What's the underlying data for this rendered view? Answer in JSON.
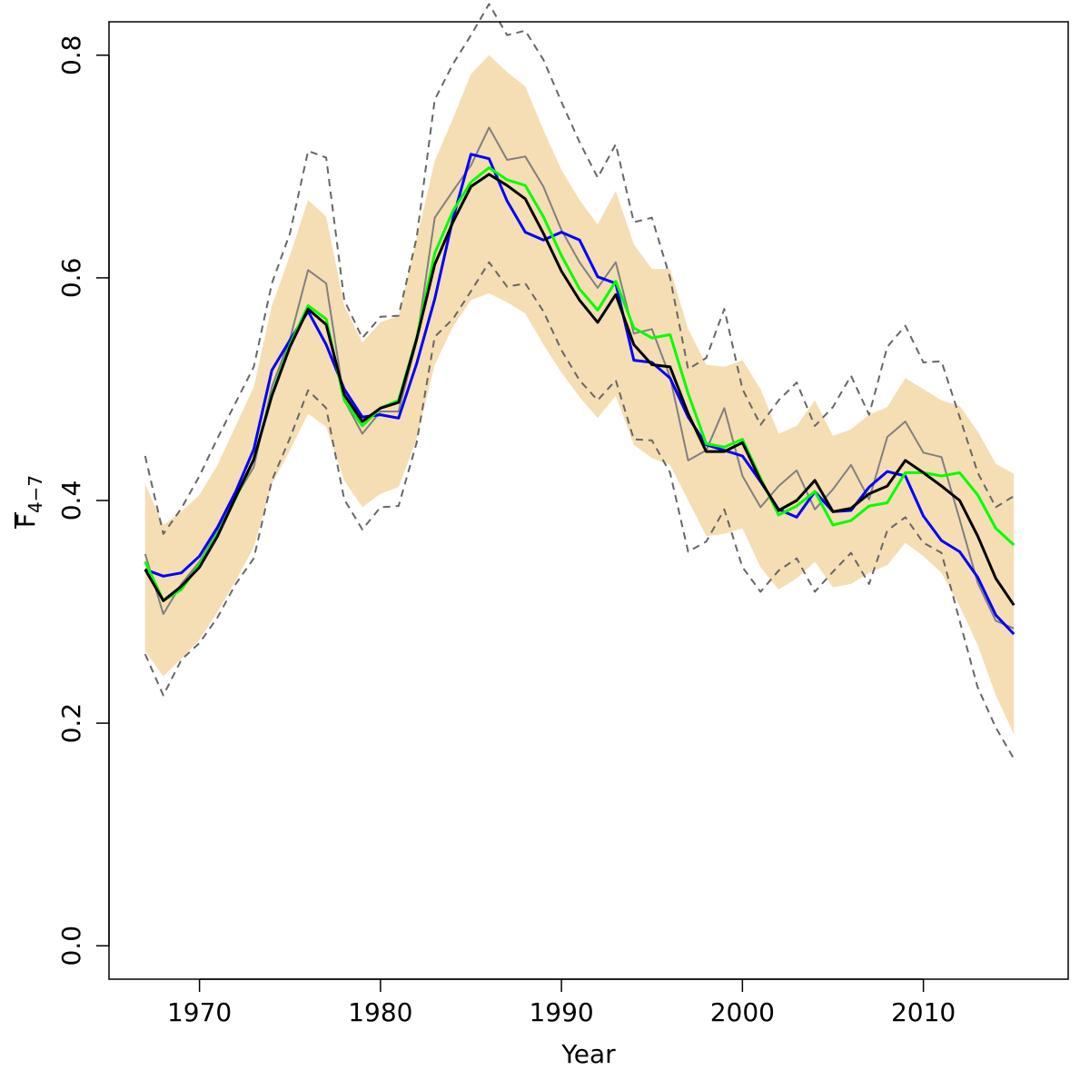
{
  "chart_data": {
    "type": "line",
    "xlabel": "Year",
    "ylabel_main": "F",
    "ylabel_sub": "4−7",
    "xlim": [
      1965,
      2018
    ],
    "ylim": [
      -0.03,
      0.83
    ],
    "x_ticks": [
      1970,
      1980,
      1990,
      2000,
      2010
    ],
    "x_tick_labels": [
      "1970",
      "1980",
      "1990",
      "2000",
      "2010"
    ],
    "y_ticks": [
      0.0,
      0.2,
      0.4,
      0.6,
      0.8
    ],
    "y_tick_labels": [
      "0.0",
      "0.2",
      "0.4",
      "0.6",
      "0.8"
    ],
    "grid": false,
    "x": [
      1967,
      1968,
      1969,
      1970,
      1971,
      1972,
      1973,
      1974,
      1975,
      1976,
      1977,
      1978,
      1979,
      1980,
      1981,
      1982,
      1983,
      1984,
      1985,
      1986,
      1987,
      1988,
      1989,
      1990,
      1991,
      1992,
      1993,
      1994,
      1995,
      1996,
      1997,
      1998,
      1999,
      2000,
      2001,
      2002,
      2003,
      2004,
      2005,
      2006,
      2007,
      2008,
      2009,
      2010,
      2011,
      2012,
      2013,
      2014,
      2015
    ],
    "band": {
      "color": "#F5DEB3",
      "lower": [
        0.265,
        0.242,
        0.258,
        0.275,
        0.3,
        0.328,
        0.358,
        0.415,
        0.445,
        0.478,
        0.466,
        0.418,
        0.394,
        0.406,
        0.412,
        0.455,
        0.522,
        0.556,
        0.58,
        0.586,
        0.578,
        0.568,
        0.54,
        0.515,
        0.493,
        0.474,
        0.494,
        0.45,
        0.438,
        0.432,
        0.4,
        0.368,
        0.37,
        0.375,
        0.34,
        0.32,
        0.33,
        0.345,
        0.322,
        0.325,
        0.335,
        0.342,
        0.362,
        0.35,
        0.335,
        0.305,
        0.27,
        0.225,
        0.19
      ],
      "upper": [
        0.415,
        0.378,
        0.39,
        0.405,
        0.432,
        0.467,
        0.502,
        0.575,
        0.62,
        0.67,
        0.655,
        0.575,
        0.542,
        0.56,
        0.566,
        0.635,
        0.705,
        0.743,
        0.783,
        0.8,
        0.785,
        0.772,
        0.733,
        0.697,
        0.67,
        0.648,
        0.678,
        0.63,
        0.608,
        0.608,
        0.554,
        0.522,
        0.52,
        0.526,
        0.5,
        0.46,
        0.467,
        0.49,
        0.458,
        0.464,
        0.477,
        0.484,
        0.51,
        0.5,
        0.49,
        0.485,
        0.462,
        0.433,
        0.424
      ]
    },
    "series": [
      {
        "color": "#000000",
        "width": 3,
        "dash": "",
        "values": [
          0.338,
          0.31,
          0.323,
          0.34,
          0.368,
          0.403,
          0.437,
          0.494,
          0.538,
          0.572,
          0.558,
          0.495,
          0.471,
          0.483,
          0.488,
          0.545,
          0.612,
          0.65,
          0.682,
          0.693,
          0.683,
          0.671,
          0.64,
          0.606,
          0.58,
          0.56,
          0.585,
          0.54,
          0.522,
          0.52,
          0.478,
          0.444,
          0.444,
          0.452,
          0.418,
          0.391,
          0.4,
          0.418,
          0.39,
          0.393,
          0.406,
          0.413,
          0.436,
          0.425,
          0.413,
          0.4,
          0.368,
          0.33,
          0.306
        ]
      },
      {
        "color": "#00FF00",
        "width": 3,
        "dash": "",
        "values": [
          0.345,
          0.31,
          0.32,
          0.343,
          0.37,
          0.402,
          0.437,
          0.495,
          0.54,
          0.575,
          0.563,
          0.49,
          0.467,
          0.483,
          0.49,
          0.546,
          0.622,
          0.66,
          0.686,
          0.699,
          0.688,
          0.683,
          0.655,
          0.62,
          0.59,
          0.571,
          0.597,
          0.555,
          0.546,
          0.549,
          0.496,
          0.451,
          0.448,
          0.455,
          0.42,
          0.387,
          0.395,
          0.408,
          0.378,
          0.382,
          0.395,
          0.398,
          0.425,
          0.425,
          0.422,
          0.425,
          0.405,
          0.375,
          0.36
        ]
      },
      {
        "color": "#0000FF",
        "width": 3,
        "dash": "",
        "values": [
          0.338,
          0.332,
          0.335,
          0.35,
          0.376,
          0.408,
          0.446,
          0.517,
          0.544,
          0.57,
          0.54,
          0.5,
          0.475,
          0.477,
          0.474,
          0.523,
          0.581,
          0.653,
          0.711,
          0.707,
          0.669,
          0.641,
          0.634,
          0.641,
          0.634,
          0.601,
          0.595,
          0.526,
          0.524,
          0.51,
          0.475,
          0.45,
          0.445,
          0.44,
          0.417,
          0.392,
          0.385,
          0.408,
          0.39,
          0.391,
          0.412,
          0.426,
          0.422,
          0.386,
          0.364,
          0.354,
          0.331,
          0.297,
          0.28
        ]
      },
      {
        "color": "#808080",
        "width": 2,
        "dash": "",
        "values": [
          0.352,
          0.298,
          0.325,
          0.345,
          0.372,
          0.403,
          0.43,
          0.502,
          0.545,
          0.607,
          0.595,
          0.49,
          0.46,
          0.48,
          0.48,
          0.543,
          0.654,
          0.678,
          0.701,
          0.735,
          0.706,
          0.709,
          0.682,
          0.643,
          0.614,
          0.591,
          0.614,
          0.55,
          0.554,
          0.511,
          0.436,
          0.445,
          0.483,
          0.422,
          0.394,
          0.413,
          0.427,
          0.392,
          0.41,
          0.432,
          0.401,
          0.457,
          0.471,
          0.443,
          0.439,
          0.383,
          0.326,
          0.292,
          0.285
        ]
      },
      {
        "color": "#666666",
        "width": 2,
        "dash": "8,6",
        "values": [
          0.44,
          0.37,
          0.393,
          0.422,
          0.456,
          0.488,
          0.52,
          0.595,
          0.64,
          0.714,
          0.708,
          0.58,
          0.546,
          0.565,
          0.566,
          0.636,
          0.76,
          0.792,
          0.818,
          0.846,
          0.818,
          0.822,
          0.796,
          0.758,
          0.722,
          0.69,
          0.72,
          0.65,
          0.654,
          0.6,
          0.518,
          0.528,
          0.572,
          0.5,
          0.468,
          0.49,
          0.506,
          0.467,
          0.484,
          0.512,
          0.477,
          0.538,
          0.557,
          0.524,
          0.525,
          0.475,
          0.425,
          0.394,
          0.404
        ]
      },
      {
        "color": "#666666",
        "width": 2,
        "dash": "8,6",
        "values": [
          0.262,
          0.225,
          0.257,
          0.272,
          0.295,
          0.325,
          0.348,
          0.418,
          0.456,
          0.499,
          0.483,
          0.401,
          0.374,
          0.394,
          0.395,
          0.452,
          0.547,
          0.563,
          0.588,
          0.614,
          0.592,
          0.595,
          0.57,
          0.535,
          0.508,
          0.49,
          0.508,
          0.455,
          0.454,
          0.425,
          0.354,
          0.363,
          0.392,
          0.34,
          0.318,
          0.337,
          0.348,
          0.318,
          0.336,
          0.353,
          0.325,
          0.373,
          0.385,
          0.362,
          0.353,
          0.292,
          0.232,
          0.196,
          0.168
        ]
      }
    ]
  }
}
